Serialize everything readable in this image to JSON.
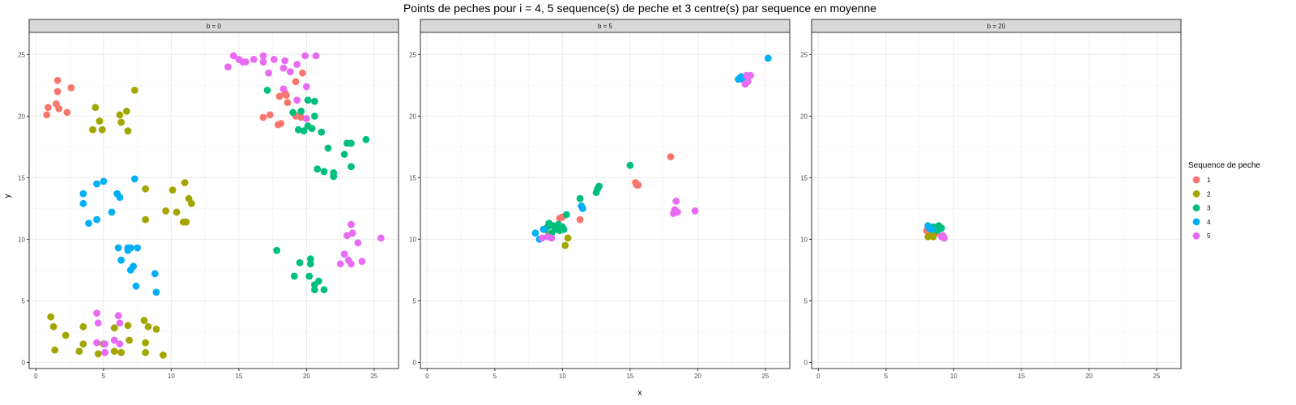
{
  "chart_data": {
    "type": "scatter",
    "title": "Points de peches pour i = 4, 5 sequence(s) de peche et 3 centre(s) par sequence en moyenne",
    "xlabel": "x",
    "ylabel": "y",
    "xlim": [
      -0.5,
      26.8
    ],
    "ylim": [
      -0.5,
      26.8
    ],
    "xticks": [
      0,
      5,
      10,
      15,
      20,
      25
    ],
    "yticks": [
      0,
      5,
      10,
      15,
      20,
      25
    ],
    "grid": true,
    "legend": {
      "title": "Sequence de peche",
      "placement": "right",
      "items": [
        {
          "label": "1",
          "color": "#F8766D"
        },
        {
          "label": "2",
          "color": "#A3A500"
        },
        {
          "label": "3",
          "color": "#00BF7D"
        },
        {
          "label": "4",
          "color": "#00B0F6"
        },
        {
          "label": "5",
          "color": "#E76BF3"
        }
      ]
    },
    "panels": [
      {
        "label": "b = 0",
        "series": [
          {
            "name": "1",
            "points": [
              [
                0.8,
                20.1
              ],
              [
                0.9,
                20.7
              ],
              [
                1.5,
                21.0
              ],
              [
                1.7,
                20.6
              ],
              [
                1.6,
                22.0
              ],
              [
                1.6,
                22.9
              ],
              [
                2.3,
                20.3
              ],
              [
                2.6,
                22.3
              ],
              [
                16.8,
                19.9
              ],
              [
                17.3,
                20.1
              ],
              [
                17.9,
                19.3
              ],
              [
                18.1,
                19.4
              ],
              [
                18.0,
                21.6
              ],
              [
                18.6,
                21.1
              ],
              [
                18.4,
                21.9
              ],
              [
                19.2,
                22.8
              ],
              [
                19.2,
                20.0
              ],
              [
                19.5,
                20.1
              ],
              [
                19.7,
                23.5
              ],
              [
                18.5,
                21.7
              ],
              [
                19.6,
                19.9
              ]
            ]
          },
          {
            "name": "2",
            "points": [
              [
                1.1,
                3.7
              ],
              [
                1.3,
                2.9
              ],
              [
                1.4,
                1.0
              ],
              [
                2.2,
                2.2
              ],
              [
                3.2,
                0.9
              ],
              [
                3.5,
                1.5
              ],
              [
                3.5,
                2.9
              ],
              [
                4.2,
                18.9
              ],
              [
                4.4,
                20.7
              ],
              [
                4.6,
                0.7
              ],
              [
                4.7,
                19.6
              ],
              [
                4.9,
                18.9
              ],
              [
                5.0,
                1.5
              ],
              [
                5.8,
                0.9
              ],
              [
                5.8,
                2.8
              ],
              [
                6.2,
                20.1
              ],
              [
                6.3,
                19.5
              ],
              [
                6.3,
                0.8
              ],
              [
                6.7,
                20.4
              ],
              [
                6.8,
                18.8
              ],
              [
                6.9,
                1.8
              ],
              [
                6.8,
                3.0
              ],
              [
                7.3,
                22.1
              ],
              [
                8.0,
                3.4
              ],
              [
                8.1,
                14.1
              ],
              [
                8.1,
                11.6
              ],
              [
                8.1,
                0.8
              ],
              [
                8.1,
                1.6
              ],
              [
                8.3,
                2.9
              ],
              [
                8.9,
                2.7
              ],
              [
                9.4,
                0.6
              ],
              [
                9.6,
                12.3
              ],
              [
                10.1,
                14.0
              ],
              [
                10.4,
                12.2
              ],
              [
                11.0,
                14.6
              ],
              [
                10.9,
                11.4
              ],
              [
                11.1,
                11.4
              ],
              [
                11.3,
                13.3
              ],
              [
                11.5,
                12.9
              ]
            ]
          },
          {
            "name": "3",
            "points": [
              [
                17.1,
                22.1
              ],
              [
                17.8,
                9.1
              ],
              [
                19.0,
                20.3
              ],
              [
                19.1,
                7.0
              ],
              [
                19.4,
                18.9
              ],
              [
                19.6,
                20.4
              ],
              [
                19.5,
                8.1
              ],
              [
                19.8,
                18.8
              ],
              [
                20.1,
                21.3
              ],
              [
                20.1,
                19.2
              ],
              [
                20.2,
                7.0
              ],
              [
                20.3,
                8.4
              ],
              [
                20.3,
                8.0
              ],
              [
                20.4,
                19.0
              ],
              [
                20.6,
                21.2
              ],
              [
                20.6,
                5.9
              ],
              [
                20.6,
                20.0
              ],
              [
                20.6,
                6.3
              ],
              [
                20.8,
                15.7
              ],
              [
                20.9,
                6.6
              ],
              [
                21.1,
                18.7
              ],
              [
                21.3,
                5.9
              ],
              [
                21.3,
                15.5
              ],
              [
                21.6,
                17.4
              ],
              [
                22.0,
                15.1
              ],
              [
                22.0,
                15.4
              ],
              [
                22.8,
                16.9
              ],
              [
                23.0,
                17.8
              ],
              [
                23.3,
                17.8
              ],
              [
                23.3,
                15.9
              ],
              [
                24.4,
                18.1
              ]
            ]
          },
          {
            "name": "4",
            "points": [
              [
                3.5,
                13.7
              ],
              [
                3.5,
                12.9
              ],
              [
                3.9,
                11.3
              ],
              [
                4.5,
                14.5
              ],
              [
                4.5,
                11.6
              ],
              [
                5.0,
                14.7
              ],
              [
                5.6,
                12.2
              ],
              [
                6.0,
                13.7
              ],
              [
                6.1,
                9.3
              ],
              [
                6.2,
                13.4
              ],
              [
                6.3,
                8.3
              ],
              [
                6.8,
                9.1
              ],
              [
                6.8,
                9.3
              ],
              [
                7.0,
                9.3
              ],
              [
                7.0,
                7.5
              ],
              [
                7.2,
                7.8
              ],
              [
                7.3,
                14.9
              ],
              [
                7.4,
                6.2
              ],
              [
                7.5,
                9.3
              ],
              [
                8.8,
                7.2
              ],
              [
                8.9,
                5.7
              ]
            ]
          },
          {
            "name": "5",
            "points": [
              [
                4.5,
                4.0
              ],
              [
                4.5,
                1.6
              ],
              [
                4.6,
                3.2
              ],
              [
                5.1,
                1.5
              ],
              [
                5.1,
                0.8
              ],
              [
                5.8,
                1.8
              ],
              [
                6.1,
                3.8
              ],
              [
                6.2,
                3.2
              ],
              [
                6.2,
                1.5
              ],
              [
                14.2,
                24.0
              ],
              [
                14.6,
                24.9
              ],
              [
                15.0,
                24.6
              ],
              [
                15.3,
                24.4
              ],
              [
                15.5,
                24.4
              ],
              [
                16.1,
                24.6
              ],
              [
                16.8,
                24.9
              ],
              [
                16.8,
                24.4
              ],
              [
                17.2,
                23.5
              ],
              [
                17.6,
                24.6
              ],
              [
                18.3,
                23.9
              ],
              [
                18.3,
                22.2
              ],
              [
                18.4,
                24.5
              ],
              [
                18.8,
                23.6
              ],
              [
                19.3,
                24.2
              ],
              [
                19.3,
                21.3
              ],
              [
                19.9,
                24.9
              ],
              [
                20.0,
                22.4
              ],
              [
                20.0,
                19.8
              ],
              [
                20.7,
                24.9
              ],
              [
                22.5,
                8.0
              ],
              [
                22.8,
                8.8
              ],
              [
                23.0,
                10.3
              ],
              [
                23.1,
                8.3
              ],
              [
                23.3,
                11.2
              ],
              [
                23.3,
                8.0
              ],
              [
                23.4,
                10.5
              ],
              [
                23.8,
                9.7
              ],
              [
                24.1,
                8.2
              ],
              [
                25.5,
                10.1
              ]
            ]
          }
        ]
      },
      {
        "label": "b = 5",
        "series": [
          {
            "name": "1",
            "points": [
              [
                9.8,
                11.7
              ],
              [
                10.0,
                11.8
              ],
              [
                11.3,
                11.6
              ],
              [
                15.4,
                14.6
              ],
              [
                15.5,
                14.4
              ],
              [
                15.6,
                14.4
              ],
              [
                18.0,
                16.7
              ]
            ]
          },
          {
            "name": "2",
            "points": [
              [
                9.0,
                10.4
              ],
              [
                10.2,
                9.5
              ],
              [
                10.4,
                10.1
              ]
            ]
          },
          {
            "name": "3",
            "points": [
              [
                8.7,
                10.8
              ],
              [
                8.9,
                11.0
              ],
              [
                9.0,
                11.3
              ],
              [
                9.2,
                10.5
              ],
              [
                9.3,
                11.1
              ],
              [
                9.5,
                10.8
              ],
              [
                9.7,
                11.2
              ],
              [
                9.8,
                10.7
              ],
              [
                10.0,
                11.0
              ],
              [
                10.1,
                10.8
              ],
              [
                10.3,
                12.0
              ],
              [
                11.3,
                13.3
              ],
              [
                12.5,
                13.8
              ],
              [
                12.6,
                14.1
              ],
              [
                12.7,
                14.3
              ],
              [
                15.0,
                16.0
              ]
            ]
          },
          {
            "name": "4",
            "points": [
              [
                8.0,
                10.5
              ],
              [
                8.3,
                10.0
              ],
              [
                8.6,
                10.8
              ],
              [
                11.4,
                12.7
              ],
              [
                11.5,
                12.5
              ],
              [
                23.0,
                23.0
              ],
              [
                23.2,
                23.2
              ],
              [
                23.3,
                23.0
              ],
              [
                25.2,
                24.7
              ]
            ]
          },
          {
            "name": "5",
            "points": [
              [
                8.5,
                10.1
              ],
              [
                8.9,
                10.2
              ],
              [
                9.2,
                10.1
              ],
              [
                18.2,
                12.1
              ],
              [
                18.3,
                12.4
              ],
              [
                18.4,
                13.1
              ],
              [
                18.5,
                12.2
              ],
              [
                19.8,
                12.3
              ],
              [
                23.5,
                22.6
              ],
              [
                23.7,
                22.8
              ],
              [
                23.9,
                23.3
              ],
              [
                23.6,
                23.3
              ]
            ]
          }
        ]
      },
      {
        "label": "b = 20",
        "series": [
          {
            "name": "1",
            "points": [
              [
                8.0,
                10.7
              ],
              [
                8.3,
                10.6
              ],
              [
                8.7,
                10.5
              ]
            ]
          },
          {
            "name": "2",
            "points": [
              [
                8.1,
                10.2
              ],
              [
                8.3,
                10.3
              ],
              [
                8.5,
                10.2
              ]
            ]
          },
          {
            "name": "3",
            "points": [
              [
                8.5,
                11.0
              ],
              [
                8.7,
                10.9
              ],
              [
                8.9,
                11.1
              ],
              [
                9.1,
                10.9
              ],
              [
                8.8,
                10.7
              ]
            ]
          },
          {
            "name": "4",
            "points": [
              [
                8.1,
                11.1
              ],
              [
                8.2,
                10.9
              ],
              [
                8.4,
                10.8
              ]
            ]
          },
          {
            "name": "5",
            "points": [
              [
                9.1,
                10.2
              ],
              [
                9.2,
                10.3
              ],
              [
                9.3,
                10.1
              ]
            ]
          }
        ]
      }
    ]
  }
}
